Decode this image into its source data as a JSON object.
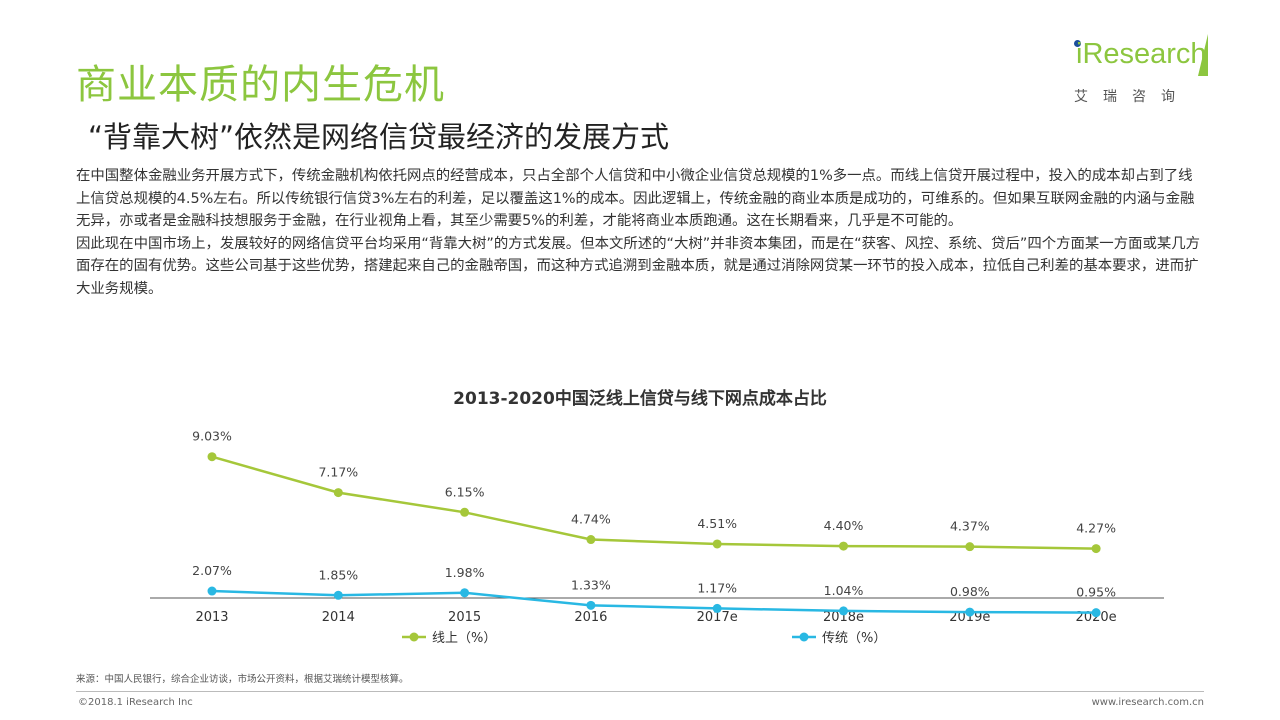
{
  "page": {
    "title": "商业本质的内生危机",
    "subtitle": "“背靠大树”依然是网络信贷最经济的发展方式",
    "paragraphs": [
      "在中国整体金融业务开展方式下，传统金融机构依托网点的经营成本，只占全部个人信贷和中小微企业信贷总规模的1%多一点。而线上信贷开展过程中，投入的成本却占到了线上信贷总规模的4.5%左右。所以传统银行信贷3%左右的利差，足以覆盖这1%的成本。因此逻辑上，传统金融的商业本质是成功的，可维系的。但如果互联网金融的内涵与金融无异，亦或者是金融科技想服务于金融，在行业视角上看，其至少需要5%的利差，才能将商业本质跑通。这在长期看来，几乎是不可能的。",
      "因此现在中国市场上，发展较好的网络信贷平台均采用“背靠大树”的方式发展。但本文所述的“大树”并非资本集团，而是在“获客、风控、系统、贷后”四个方面某一方面或某几方面存在的固有优势。这些公司基于这些优势，搭建起来自己的金融帝国，而这种方式追溯到金融本质，就是通过消除网贷某一环节的投入成本，拉低自己利差的基本要求，进而扩大业务规模。"
    ]
  },
  "logo": {
    "word": "iResearch",
    "chinese": "艾瑞咨询"
  },
  "chart_data": {
    "type": "line",
    "title": "2013-2020中国泛线上信贷与线下网点成本占比",
    "categories": [
      "2013",
      "2014",
      "2015",
      "2016",
      "2017e",
      "2018e",
      "2019e",
      "2020e"
    ],
    "series": [
      {
        "name": "线上（%）",
        "color": "#A5C73A",
        "values": [
          9.03,
          7.17,
          6.15,
          4.74,
          4.51,
          4.4,
          4.37,
          4.27
        ],
        "labels": [
          "9.03%",
          "7.17%",
          "6.15%",
          "4.74%",
          "4.51%",
          "4.40%",
          "4.37%",
          "4.27%"
        ]
      },
      {
        "name": "传统（%）",
        "color": "#29B8E3",
        "values": [
          2.07,
          1.85,
          1.98,
          1.33,
          1.17,
          1.04,
          0.98,
          0.95
        ],
        "labels": [
          "2.07%",
          "1.85%",
          "1.98%",
          "1.33%",
          "1.17%",
          "1.04%",
          "0.98%",
          "0.95%"
        ]
      }
    ],
    "ylim": [
      0,
      10
    ],
    "grid": false,
    "legend": "bottom"
  },
  "footer": {
    "source": "来源：中国人民银行，综合企业访谈，市场公开资料，根据艾瑞统计模型核算。",
    "copyright": "©2018.1 iResearch Inc",
    "website": "www.iresearch.com.cn"
  }
}
